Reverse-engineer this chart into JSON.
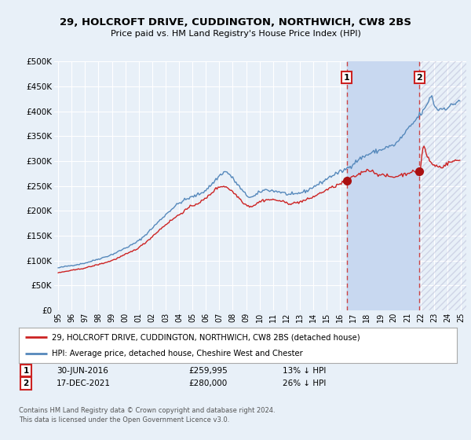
{
  "title": "29, HOLCROFT DRIVE, CUDDINGTON, NORTHWICH, CW8 2BS",
  "subtitle": "Price paid vs. HM Land Registry's House Price Index (HPI)",
  "ylim": [
    0,
    500000
  ],
  "yticks": [
    0,
    50000,
    100000,
    150000,
    200000,
    250000,
    300000,
    350000,
    400000,
    450000,
    500000
  ],
  "ytick_labels": [
    "£0",
    "£50K",
    "£100K",
    "£150K",
    "£200K",
    "£250K",
    "£300K",
    "£350K",
    "£400K",
    "£450K",
    "£500K"
  ],
  "background_color": "#e8f0f8",
  "plot_bg_color": "#e8f0f8",
  "hpi_color": "#5588bb",
  "price_color": "#cc2222",
  "marker_color": "#aa1111",
  "shade_color": "#c8d8f0",
  "legend_box_color": "#ffffff",
  "sale1_date": "30-JUN-2016",
  "sale1_price": 259995,
  "sale1_label": "13% ↓ HPI",
  "sale2_date": "17-DEC-2021",
  "sale2_price": 280000,
  "sale2_label": "26% ↓ HPI",
  "footer1": "Contains HM Land Registry data © Crown copyright and database right 2024.",
  "footer2": "This data is licensed under the Open Government Licence v3.0.",
  "legend1": "29, HOLCROFT DRIVE, CUDDINGTON, NORTHWICH, CW8 2BS (detached house)",
  "legend2": "HPI: Average price, detached house, Cheshire West and Chester",
  "sale1_x": 2016.5,
  "sale2_x": 2021.92,
  "xtick_years": [
    1995,
    1996,
    1997,
    1998,
    1999,
    2000,
    2001,
    2002,
    2003,
    2004,
    2005,
    2006,
    2007,
    2008,
    2009,
    2010,
    2011,
    2012,
    2013,
    2014,
    2015,
    2016,
    2017,
    2018,
    2019,
    2020,
    2021,
    2022,
    2023,
    2024,
    2025
  ]
}
